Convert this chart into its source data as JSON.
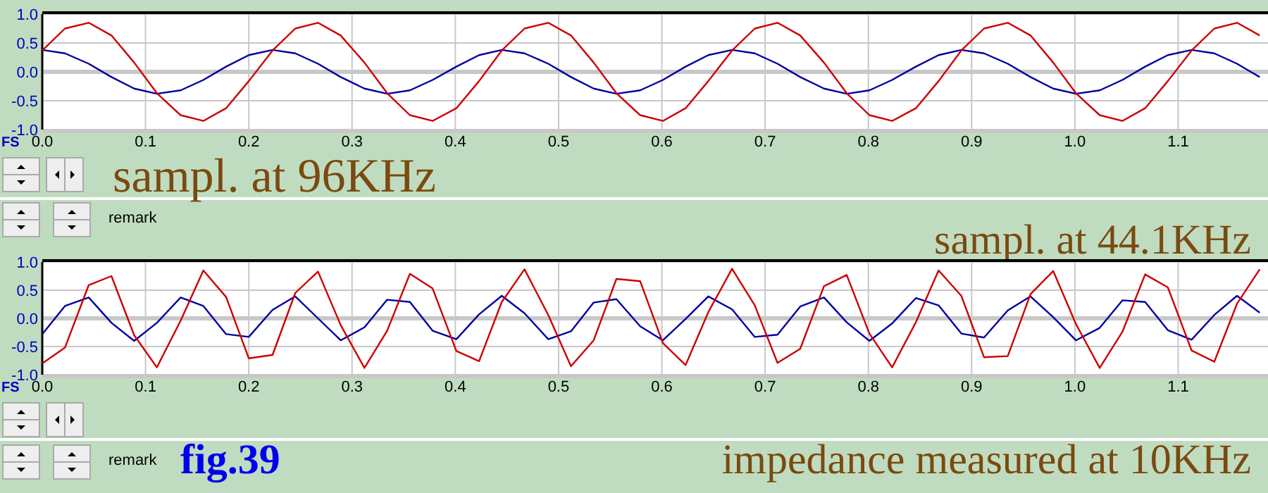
{
  "chart_data": [
    {
      "type": "line",
      "annotations": [
        "FS",
        "sampl. at 96KHz",
        "remark",
        "sampl. at 44.1KHz"
      ],
      "x": [
        0,
        0.022,
        0.045,
        0.067,
        0.089,
        0.111,
        0.134,
        0.156,
        0.178,
        0.2,
        0.223,
        0.245,
        0.267,
        0.289,
        0.312,
        0.334,
        0.356,
        0.378,
        0.401,
        0.423,
        0.445,
        0.467,
        0.49,
        0.512,
        0.534,
        0.556,
        0.579,
        0.601,
        0.623,
        0.645,
        0.668,
        0.69,
        0.712,
        0.734,
        0.757,
        0.779,
        0.801,
        0.823,
        0.846,
        0.868,
        0.89,
        0.912,
        0.935,
        0.957,
        0.979,
        1.001,
        1.024,
        1.046,
        1.068,
        1.09,
        1.113,
        1.135,
        1.157,
        1.179
      ],
      "series": [
        {
          "color": "#0000a0",
          "values": [
            0.38,
            0.32,
            0.14,
            -0.09,
            -0.29,
            -0.38,
            -0.32,
            -0.14,
            0.09,
            0.29,
            0.38,
            0.32,
            0.14,
            -0.09,
            -0.29,
            -0.38,
            -0.32,
            -0.14,
            0.09,
            0.29,
            0.38,
            0.32,
            0.14,
            -0.09,
            -0.29,
            -0.38,
            -0.32,
            -0.14,
            0.09,
            0.29,
            0.38,
            0.32,
            0.14,
            -0.09,
            -0.29,
            -0.38,
            -0.32,
            -0.14,
            0.09,
            0.29,
            0.38,
            0.32,
            0.14,
            -0.09,
            -0.29,
            -0.38,
            -0.32,
            -0.14,
            0.09,
            0.29,
            0.38,
            0.32,
            0.14,
            -0.09
          ]
        },
        {
          "color": "#cc0000",
          "values": [
            0.37,
            0.75,
            0.85,
            0.63,
            0.16,
            -0.37,
            -0.75,
            -0.85,
            -0.63,
            -0.16,
            0.37,
            0.75,
            0.85,
            0.63,
            0.16,
            -0.37,
            -0.75,
            -0.85,
            -0.63,
            -0.16,
            0.37,
            0.75,
            0.85,
            0.63,
            0.16,
            -0.37,
            -0.75,
            -0.85,
            -0.63,
            -0.16,
            0.37,
            0.75,
            0.85,
            0.63,
            0.16,
            -0.37,
            -0.75,
            -0.85,
            -0.63,
            -0.16,
            0.37,
            0.75,
            0.85,
            0.63,
            0.16,
            -0.37,
            -0.75,
            -0.85,
            -0.63,
            -0.16,
            0.37,
            0.75,
            0.85,
            0.63
          ]
        }
      ],
      "xlim": [
        0,
        1.187
      ],
      "ylim": [
        -1,
        1
      ],
      "xticks": [
        {
          "value": 0,
          "label": "0.0"
        },
        {
          "value": 0.1,
          "label": "0.1"
        },
        {
          "value": 0.2,
          "label": "0.2"
        },
        {
          "value": 0.3,
          "label": "0.3"
        },
        {
          "value": 0.4,
          "label": "0.4"
        },
        {
          "value": 0.5,
          "label": "0.5"
        },
        {
          "value": 0.6,
          "label": "0.6"
        },
        {
          "value": 0.7,
          "label": "0.7"
        },
        {
          "value": 0.8,
          "label": "0.8"
        },
        {
          "value": 0.9,
          "label": "0.9"
        },
        {
          "value": 1,
          "label": "1.0"
        },
        {
          "value": 1.1,
          "label": "1.1"
        }
      ],
      "yticks": [
        {
          "value": -1,
          "label": "-1.0"
        },
        {
          "value": -0.5,
          "label": "-0.5"
        },
        {
          "value": 0,
          "label": "0.0"
        },
        {
          "value": 0.5,
          "label": "0.5"
        },
        {
          "value": 1,
          "label": "1.0"
        }
      ],
      "grid": true
    },
    {
      "type": "line",
      "annotations": [
        "FS",
        "remark",
        "fig.39",
        "impedance measured at 10KHz"
      ],
      "x": [
        0,
        0.022,
        0.045,
        0.067,
        0.089,
        0.111,
        0.134,
        0.156,
        0.178,
        0.2,
        0.223,
        0.245,
        0.267,
        0.289,
        0.312,
        0.334,
        0.356,
        0.378,
        0.401,
        0.423,
        0.445,
        0.467,
        0.49,
        0.512,
        0.534,
        0.556,
        0.579,
        0.601,
        0.623,
        0.645,
        0.668,
        0.69,
        0.712,
        0.734,
        0.757,
        0.779,
        0.801,
        0.823,
        0.846,
        0.868,
        0.89,
        0.912,
        0.935,
        0.957,
        0.979,
        1.001,
        1.024,
        1.046,
        1.068,
        1.09,
        1.113,
        1.135,
        1.157,
        1.179
      ],
      "series": [
        {
          "color": "#0000a0",
          "values": [
            -0.28,
            0.22,
            0.37,
            -0.08,
            -0.4,
            -0.08,
            0.37,
            0.22,
            -0.28,
            -0.33,
            0.15,
            0.39,
            0,
            -0.39,
            -0.16,
            0.33,
            0.29,
            -0.22,
            -0.37,
            0.07,
            0.4,
            0.09,
            -0.37,
            -0.23,
            0.28,
            0.34,
            -0.14,
            -0.39,
            -0.01,
            0.39,
            0.16,
            -0.33,
            -0.29,
            0.21,
            0.37,
            -0.07,
            -0.4,
            -0.09,
            0.36,
            0.23,
            -0.27,
            -0.34,
            0.14,
            0.39,
            0.02,
            -0.39,
            -0.17,
            0.32,
            0.29,
            -0.21,
            -0.38,
            0.06,
            0.4,
            0.1
          ]
        },
        {
          "color": "#cc0000",
          "values": [
            -0.8,
            -0.52,
            0.59,
            0.75,
            -0.3,
            -0.87,
            -0.04,
            0.85,
            0.38,
            -0.71,
            -0.65,
            0.45,
            0.83,
            -0.12,
            -0.88,
            -0.22,
            0.79,
            0.53,
            -0.58,
            -0.76,
            0.29,
            0.87,
            0.06,
            -0.85,
            -0.39,
            0.7,
            0.66,
            -0.44,
            -0.83,
            0.11,
            0.88,
            0.23,
            -0.79,
            -0.54,
            0.57,
            0.77,
            -0.27,
            -0.87,
            -0.07,
            0.85,
            0.4,
            -0.69,
            -0.67,
            0.43,
            0.84,
            -0.1,
            -0.88,
            -0.24,
            0.78,
            0.55,
            -0.57,
            -0.77,
            0.26,
            0.87
          ]
        }
      ],
      "xlim": [
        0,
        1.187
      ],
      "ylim": [
        -1,
        1
      ],
      "xticks": [
        {
          "value": 0,
          "label": "0.0"
        },
        {
          "value": 0.1,
          "label": "0.1"
        },
        {
          "value": 0.2,
          "label": "0.2"
        },
        {
          "value": 0.3,
          "label": "0.3"
        },
        {
          "value": 0.4,
          "label": "0.4"
        },
        {
          "value": 0.5,
          "label": "0.5"
        },
        {
          "value": 0.6,
          "label": "0.6"
        },
        {
          "value": 0.7,
          "label": "0.7"
        },
        {
          "value": 0.8,
          "label": "0.8"
        },
        {
          "value": 0.9,
          "label": "0.9"
        },
        {
          "value": 1,
          "label": "1.0"
        },
        {
          "value": 1.1,
          "label": "1.1"
        }
      ],
      "yticks": [
        {
          "value": -1,
          "label": "-1.0"
        },
        {
          "value": -0.5,
          "label": "-0.5"
        },
        {
          "value": 0,
          "label": "0.0"
        },
        {
          "value": 0.5,
          "label": "0.5"
        },
        {
          "value": 1,
          "label": "1.0"
        }
      ],
      "grid": true
    }
  ]
}
